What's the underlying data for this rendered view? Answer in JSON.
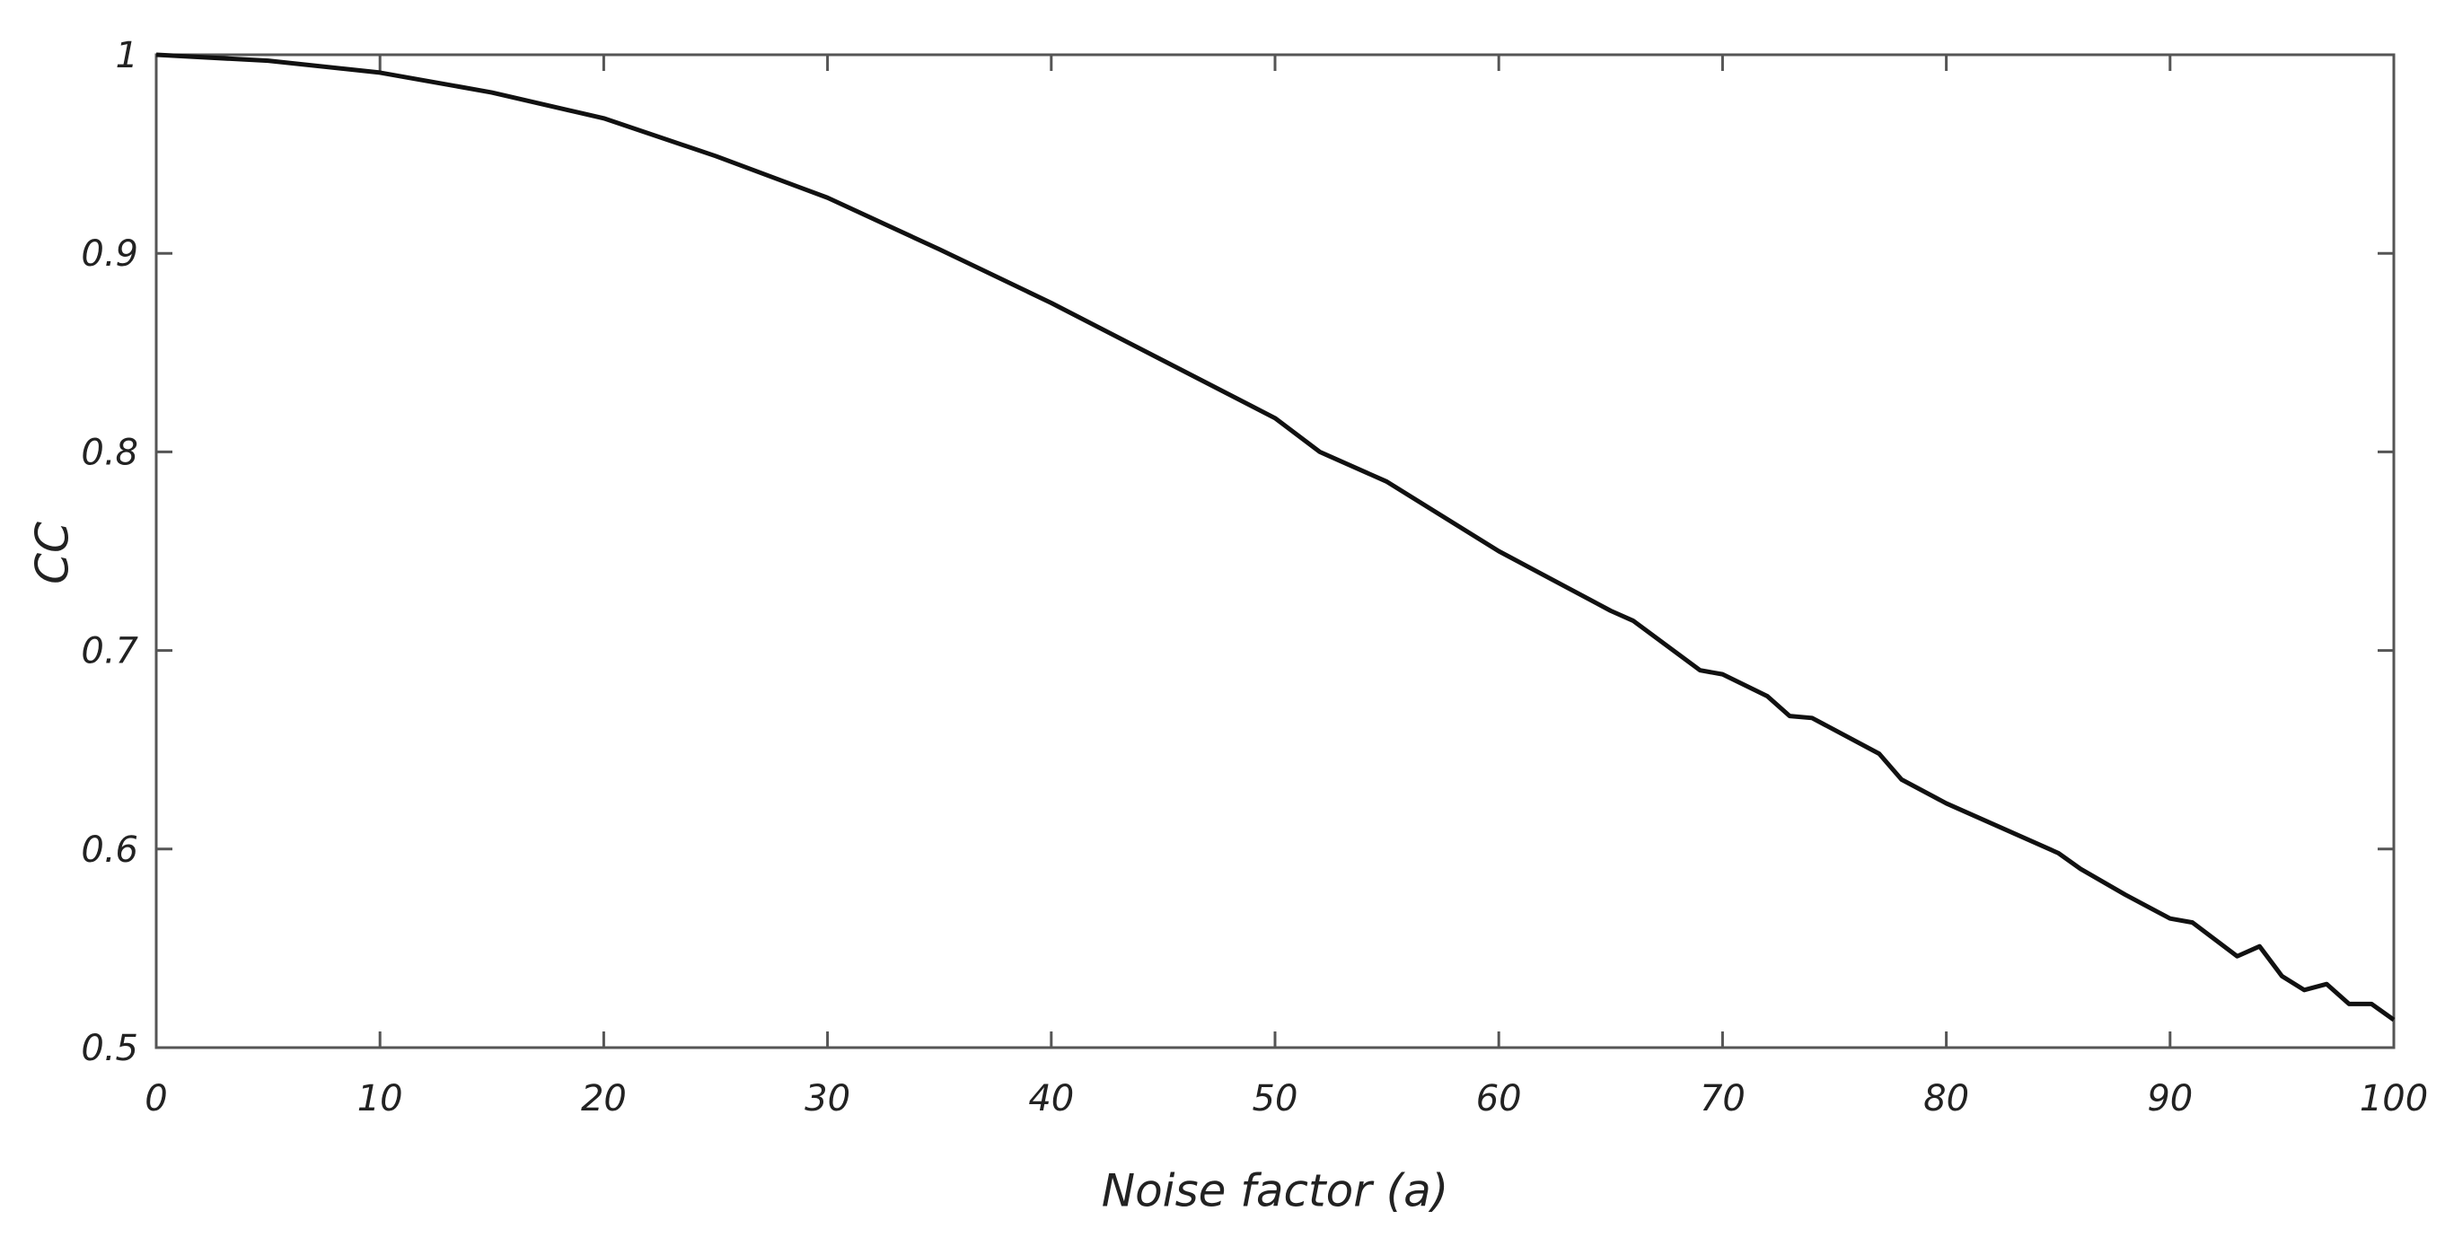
{
  "chart_data": {
    "type": "line",
    "x_label": "Noise factor (a)",
    "y_label": "CC",
    "x": [
      0,
      5,
      10,
      15,
      20,
      25,
      30,
      35,
      40,
      45,
      50,
      52,
      55,
      60,
      65,
      66,
      69,
      70,
      72,
      73,
      74,
      77,
      78,
      80,
      85,
      86,
      88,
      90,
      91,
      93,
      94,
      95,
      96,
      97,
      98,
      99,
      100
    ],
    "series": [
      {
        "color": "#111111",
        "values": [
          1.0,
          0.997,
          0.991,
          0.981,
          0.968,
          0.949,
          0.928,
          0.902,
          0.875,
          0.846,
          0.817,
          0.8,
          0.785,
          0.75,
          0.72,
          0.715,
          0.69,
          0.688,
          0.677,
          0.667,
          0.666,
          0.648,
          0.635,
          0.623,
          0.598,
          0.59,
          0.577,
          0.565,
          0.563,
          0.546,
          0.551,
          0.536,
          0.529,
          0.532,
          0.522,
          0.522,
          0.514
        ]
      }
    ],
    "xlim": [
      0,
      100
    ],
    "xticks": [
      0,
      10,
      20,
      30,
      40,
      50,
      60,
      70,
      80,
      90,
      100
    ],
    "ylim": [
      0.5,
      1
    ],
    "yticks": [
      0.5,
      0.6,
      0.7,
      0.8,
      0.9,
      1
    ],
    "grid": false
  }
}
